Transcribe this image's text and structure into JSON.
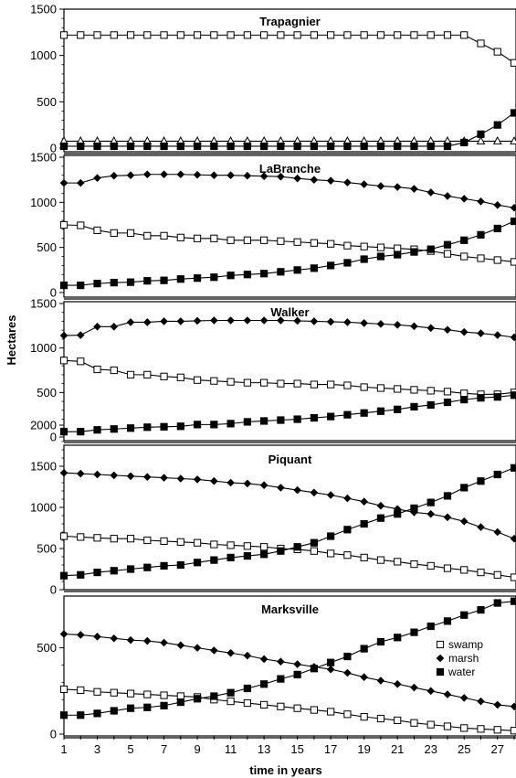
{
  "chart_data": {
    "type": "line",
    "xlabel": "time in years",
    "ylabel": "Hectares",
    "x_ticks": [
      1,
      3,
      5,
      7,
      9,
      11,
      13,
      15,
      17,
      19,
      21,
      23,
      25,
      27
    ],
    "x": [
      1,
      2,
      3,
      4,
      5,
      6,
      7,
      8,
      9,
      10,
      11,
      12,
      13,
      14,
      15,
      16,
      17,
      18,
      19,
      20,
      21,
      22,
      23,
      24,
      25,
      26,
      27,
      28
    ],
    "legend": {
      "placement": "lower-right of last panel",
      "entries": [
        {
          "series": "swamp",
          "label": "swamp",
          "marker": "open-square"
        },
        {
          "series": "marsh",
          "label": "marsh",
          "marker": "filled-diamond"
        },
        {
          "series": "water",
          "label": "water",
          "marker": "filled-square"
        }
      ]
    },
    "panels": [
      {
        "title": "Trapagnier",
        "ylim": [
          0,
          1500
        ],
        "y_ticks": [
          0,
          500,
          1000,
          1500
        ],
        "marsh_marker": "open-triangle",
        "series": [
          {
            "name": "swamp",
            "values": [
              1220,
              1220,
              1220,
              1220,
              1220,
              1220,
              1220,
              1220,
              1220,
              1220,
              1220,
              1220,
              1220,
              1220,
              1220,
              1220,
              1220,
              1220,
              1220,
              1220,
              1220,
              1220,
              1220,
              1220,
              1220,
              1130,
              1040,
              920
            ]
          },
          {
            "name": "marsh",
            "values": [
              75,
              75,
              75,
              75,
              75,
              75,
              75,
              75,
              75,
              75,
              75,
              75,
              75,
              75,
              75,
              75,
              75,
              75,
              75,
              75,
              75,
              75,
              75,
              75,
              75,
              75,
              75,
              75
            ]
          },
          {
            "name": "water",
            "values": [
              20,
              20,
              20,
              20,
              20,
              20,
              20,
              20,
              20,
              20,
              20,
              20,
              20,
              20,
              20,
              20,
              20,
              20,
              20,
              20,
              20,
              20,
              20,
              20,
              60,
              150,
              250,
              380
            ]
          }
        ]
      },
      {
        "title": "LaBranche",
        "ylim": [
          0,
          1500
        ],
        "y_ticks": [
          0,
          500,
          1000,
          1500
        ],
        "series": [
          {
            "name": "swamp",
            "values": [
              750,
              745,
              690,
              660,
              660,
              630,
              630,
              610,
              600,
              600,
              580,
              580,
              580,
              570,
              560,
              550,
              540,
              520,
              510,
              500,
              490,
              480,
              460,
              430,
              400,
              380,
              360,
              340
            ]
          },
          {
            "name": "marsh",
            "values": [
              1215,
              1215,
              1270,
              1295,
              1300,
              1310,
              1310,
              1310,
              1305,
              1300,
              1300,
              1295,
              1290,
              1285,
              1265,
              1250,
              1240,
              1220,
              1200,
              1180,
              1170,
              1150,
              1110,
              1070,
              1040,
              1010,
              970,
              940
            ]
          },
          {
            "name": "water",
            "values": [
              80,
              80,
              100,
              110,
              115,
              130,
              135,
              150,
              160,
              170,
              190,
              200,
              210,
              230,
              250,
              270,
              300,
              330,
              370,
              400,
              420,
              450,
              480,
              530,
              580,
              640,
              710,
              790
            ]
          }
        ]
      },
      {
        "title": "Walker",
        "ylim": [
          0,
          1500
        ],
        "y_ticks": [
          0,
          500,
          1000,
          1500
        ],
        "series": [
          {
            "name": "swamp",
            "values": [
              860,
              850,
              760,
              750,
              700,
              700,
              680,
              670,
              640,
              630,
              620,
              610,
              610,
              600,
              600,
              590,
              590,
              580,
              560,
              550,
              540,
              530,
              520,
              510,
              490,
              480,
              480,
              500
            ]
          },
          {
            "name": "marsh",
            "values": [
              1140,
              1145,
              1240,
              1240,
              1290,
              1290,
              1300,
              1300,
              1305,
              1310,
              1310,
              1310,
              1310,
              1310,
              1305,
              1300,
              1295,
              1290,
              1280,
              1270,
              1260,
              1245,
              1225,
              1205,
              1180,
              1165,
              1145,
              1120
            ]
          },
          {
            "name": "water",
            "values": [
              60,
              60,
              80,
              90,
              100,
              110,
              115,
              120,
              140,
              140,
              150,
              170,
              180,
              190,
              200,
              215,
              230,
              250,
              270,
              290,
              310,
              340,
              360,
              390,
              420,
              440,
              450,
              470
            ]
          }
        ]
      },
      {
        "title": "Piquant",
        "ylim": [
          0,
          2000
        ],
        "y_ticks": [
          0,
          500,
          1000,
          1500,
          2000
        ],
        "series": [
          {
            "name": "swamp",
            "values": [
              650,
              640,
              630,
              620,
              620,
              600,
              590,
              580,
              570,
              550,
              540,
              530,
              520,
              500,
              490,
              470,
              440,
              420,
              390,
              360,
              340,
              310,
              290,
              260,
              240,
              210,
              180,
              150
            ]
          },
          {
            "name": "marsh",
            "values": [
              1420,
              1410,
              1400,
              1390,
              1380,
              1370,
              1360,
              1350,
              1340,
              1320,
              1300,
              1290,
              1270,
              1240,
              1210,
              1180,
              1150,
              1110,
              1070,
              1020,
              980,
              940,
              920,
              880,
              830,
              760,
              700,
              620
            ]
          },
          {
            "name": "water",
            "values": [
              170,
              180,
              210,
              230,
              250,
              270,
              290,
              300,
              330,
              360,
              390,
              410,
              430,
              470,
              520,
              570,
              650,
              730,
              800,
              870,
              920,
              990,
              1060,
              1140,
              1240,
              1320,
              1400,
              1480
            ]
          }
        ]
      },
      {
        "title": "Marksville",
        "ylim": [
          0,
          800
        ],
        "y_ticks": [
          0,
          500
        ],
        "series": [
          {
            "name": "swamp",
            "values": [
              260,
              255,
              245,
              240,
              235,
              230,
              225,
              220,
              215,
              200,
              190,
              180,
              170,
              160,
              150,
              140,
              130,
              115,
              100,
              90,
              80,
              65,
              55,
              45,
              35,
              30,
              25,
              20
            ]
          },
          {
            "name": "marsh",
            "values": [
              580,
              575,
              565,
              555,
              545,
              540,
              530,
              515,
              500,
              485,
              470,
              455,
              435,
              420,
              405,
              390,
              375,
              355,
              330,
              310,
              290,
              270,
              250,
              230,
              210,
              190,
              170,
              160
            ]
          },
          {
            "name": "water",
            "values": [
              110,
              110,
              120,
              135,
              150,
              155,
              165,
              185,
              205,
              220,
              240,
              265,
              290,
              320,
              345,
              380,
              415,
              450,
              495,
              535,
              560,
              590,
              625,
              655,
              690,
              720,
              760,
              770
            ]
          }
        ]
      }
    ]
  }
}
